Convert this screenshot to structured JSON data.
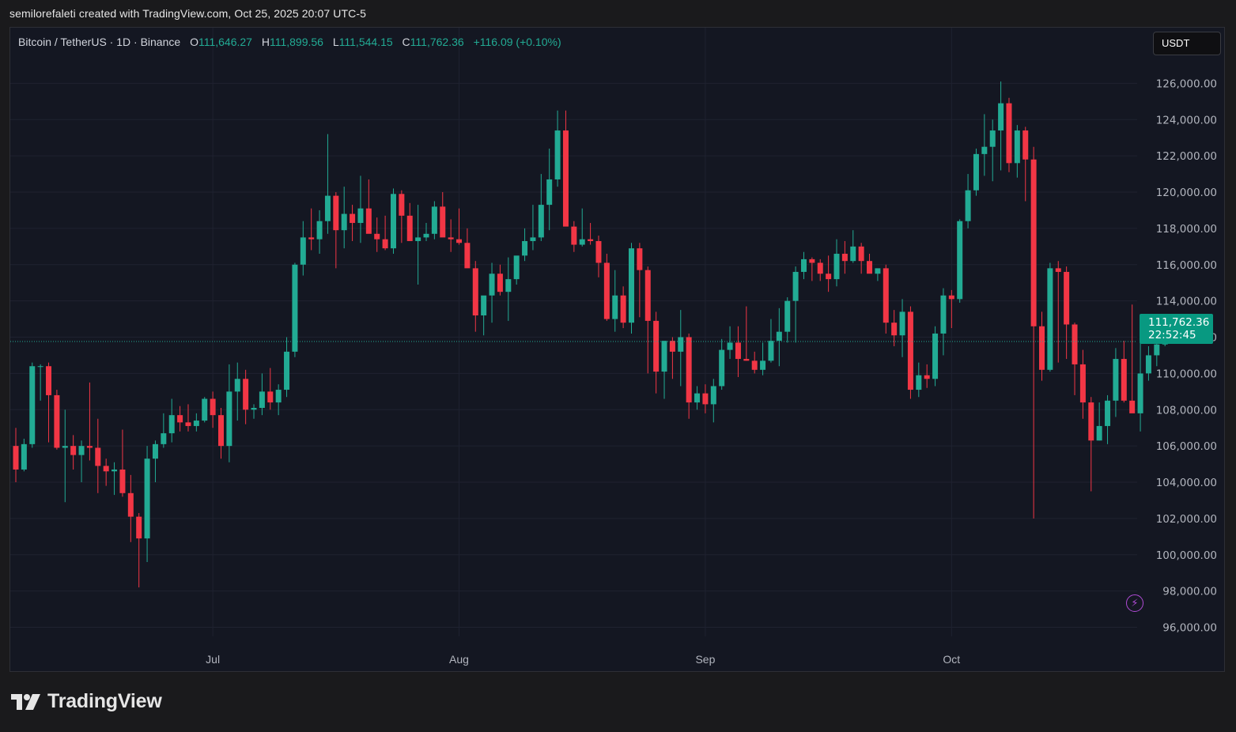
{
  "credit": "semilorefaleti created with TradingView.com, Oct 25, 2025 20:07 UTC-5",
  "legend": {
    "symbol": "Bitcoin / TetherUS · 1D · Binance",
    "open_label": "O",
    "open": "111,646.27",
    "high_label": "H",
    "high": "111,899.56",
    "low_label": "L",
    "low": "111,544.15",
    "close_label": "C",
    "close": "111,762.36",
    "change": "+116.09 (+0.10%)"
  },
  "currency_button": "USDT",
  "last_price": {
    "price": "111,762.36",
    "countdown": "22:52:45"
  },
  "brand": "TradingView",
  "colors": {
    "up": "#22ab94",
    "down": "#f23645",
    "background": "#141722",
    "grid": "#1f2230"
  },
  "chart_data": {
    "type": "candlestick",
    "symbol": "BTCUSDT",
    "interval": "1D",
    "x_ticks": [
      "Jul",
      "Aug",
      "Sep",
      "Oct"
    ],
    "y_ticks": [
      96000,
      98000,
      100000,
      102000,
      104000,
      106000,
      108000,
      110000,
      112000,
      114000,
      116000,
      118000,
      120000,
      122000,
      124000,
      126000
    ],
    "ylim": [
      95500,
      127500
    ],
    "grid": true,
    "last_price": 111762.36,
    "candles_ohlc": [
      [
        106000,
        107000,
        104000,
        104700
      ],
      [
        104700,
        106400,
        104600,
        106100
      ],
      [
        106100,
        110600,
        105900,
        110400
      ],
      [
        110400,
        110500,
        108500,
        110400
      ],
      [
        110400,
        110600,
        106200,
        108800
      ],
      [
        108800,
        109100,
        105800,
        105900
      ],
      [
        105900,
        108000,
        102900,
        106000
      ],
      [
        106000,
        106600,
        104700,
        105500
      ],
      [
        105500,
        106300,
        104000,
        106000
      ],
      [
        106000,
        109500,
        105200,
        105900
      ],
      [
        105900,
        107500,
        103400,
        104900
      ],
      [
        104900,
        105300,
        103800,
        104600
      ],
      [
        104600,
        105100,
        103300,
        104700
      ],
      [
        104700,
        106900,
        103200,
        103400
      ],
      [
        103400,
        104400,
        100700,
        102100
      ],
      [
        102100,
        102300,
        98200,
        100900
      ],
      [
        100900,
        106000,
        99600,
        105300
      ],
      [
        105300,
        106300,
        104000,
        106100
      ],
      [
        106100,
        107800,
        105900,
        106700
      ],
      [
        106700,
        108600,
        106200,
        107700
      ],
      [
        107700,
        108200,
        106800,
        107300
      ],
      [
        107300,
        108300,
        106800,
        107100
      ],
      [
        107100,
        107800,
        106800,
        107400
      ],
      [
        107400,
        108700,
        107300,
        108600
      ],
      [
        108600,
        109000,
        107000,
        107700
      ],
      [
        107700,
        108100,
        105300,
        106000
      ],
      [
        106000,
        110500,
        105100,
        109000
      ],
      [
        109000,
        110600,
        107400,
        109700
      ],
      [
        109700,
        110200,
        107200,
        108000
      ],
      [
        108000,
        108300,
        107500,
        108100
      ],
      [
        108100,
        110000,
        107700,
        109000
      ],
      [
        109000,
        110300,
        108000,
        108400
      ],
      [
        108400,
        109400,
        107700,
        109100
      ],
      [
        109100,
        112000,
        108700,
        111200
      ],
      [
        111200,
        116100,
        110900,
        116000
      ],
      [
        116000,
        118400,
        115400,
        117500
      ],
      [
        117500,
        119100,
        116800,
        117400
      ],
      [
        117400,
        119000,
        116600,
        118400
      ],
      [
        118400,
        123200,
        117700,
        119800
      ],
      [
        119800,
        120000,
        115800,
        117900
      ],
      [
        117900,
        120300,
        116900,
        118800
      ],
      [
        118800,
        119300,
        117300,
        118300
      ],
      [
        118300,
        120900,
        117200,
        119100
      ],
      [
        119100,
        120700,
        118300,
        117700
      ],
      [
        117700,
        118600,
        116700,
        117400
      ],
      [
        117400,
        118700,
        116800,
        116900
      ],
      [
        116900,
        120200,
        116600,
        119900
      ],
      [
        119900,
        120100,
        117200,
        118700
      ],
      [
        118700,
        119400,
        117500,
        117300
      ],
      [
        117300,
        119300,
        114900,
        117500
      ],
      [
        117500,
        118300,
        117300,
        117700
      ],
      [
        117700,
        119500,
        117400,
        119200
      ],
      [
        119200,
        120000,
        117800,
        117500
      ],
      [
        117500,
        118500,
        116700,
        117400
      ],
      [
        117400,
        119100,
        117100,
        117200
      ],
      [
        117200,
        118000,
        116100,
        115800
      ],
      [
        115800,
        116200,
        112300,
        113200
      ],
      [
        113200,
        114000,
        112100,
        114300
      ],
      [
        114300,
        116100,
        112800,
        115500
      ],
      [
        115500,
        116000,
        114300,
        114500
      ],
      [
        114500,
        116400,
        112900,
        115200
      ],
      [
        115200,
        116300,
        114900,
        116500
      ],
      [
        116500,
        118000,
        116200,
        117300
      ],
      [
        117300,
        119300,
        116800,
        117500
      ],
      [
        117500,
        121000,
        117300,
        119300
      ],
      [
        119300,
        122400,
        117900,
        120700
      ],
      [
        120700,
        124500,
        120300,
        123400
      ],
      [
        123400,
        124500,
        119000,
        118100
      ],
      [
        118100,
        118400,
        116700,
        117100
      ],
      [
        117100,
        119100,
        117000,
        117400
      ],
      [
        117400,
        118300,
        117100,
        117300
      ],
      [
        117300,
        117600,
        115300,
        116100
      ],
      [
        116100,
        116600,
        112900,
        113000
      ],
      [
        113000,
        115700,
        112300,
        114300
      ],
      [
        114300,
        114800,
        112500,
        112800
      ],
      [
        112800,
        117200,
        112200,
        116900
      ],
      [
        116900,
        117200,
        113100,
        115700
      ],
      [
        115700,
        115900,
        110000,
        112900
      ],
      [
        112900,
        113400,
        108900,
        110100
      ],
      [
        110100,
        110500,
        108600,
        111800
      ],
      [
        111800,
        112000,
        109700,
        111200
      ],
      [
        111200,
        113500,
        109300,
        112000
      ],
      [
        112000,
        112200,
        107500,
        108400
      ],
      [
        108400,
        109300,
        108000,
        108900
      ],
      [
        108900,
        109400,
        107800,
        108300
      ],
      [
        108300,
        109700,
        107300,
        109300
      ],
      [
        109300,
        111900,
        109100,
        111300
      ],
      [
        111300,
        112600,
        110800,
        111700
      ],
      [
        111700,
        112600,
        109800,
        110800
      ],
      [
        110800,
        113700,
        110700,
        110700
      ],
      [
        110700,
        111200,
        110000,
        110200
      ],
      [
        110200,
        111700,
        109900,
        110700
      ],
      [
        110700,
        113000,
        110600,
        111800
      ],
      [
        111800,
        113600,
        110400,
        112300
      ],
      [
        112300,
        114200,
        111700,
        114000
      ],
      [
        114000,
        115900,
        111700,
        115600
      ],
      [
        115600,
        116700,
        115200,
        116300
      ],
      [
        116300,
        116400,
        115100,
        116100
      ],
      [
        116100,
        116300,
        115100,
        115500
      ],
      [
        115500,
        116500,
        114500,
        115200
      ],
      [
        115200,
        117400,
        114800,
        116600
      ],
      [
        116600,
        117300,
        115500,
        116200
      ],
      [
        116200,
        117900,
        116100,
        117000
      ],
      [
        117000,
        117200,
        115500,
        116200
      ],
      [
        116200,
        116600,
        115800,
        115500
      ],
      [
        115500,
        115700,
        115100,
        115800
      ],
      [
        115800,
        116000,
        112200,
        112800
      ],
      [
        112800,
        113500,
        111500,
        112100
      ],
      [
        112100,
        114100,
        110900,
        113400
      ],
      [
        113400,
        113700,
        108600,
        109100
      ],
      [
        109100,
        110600,
        108700,
        109900
      ],
      [
        109900,
        110500,
        109200,
        109700
      ],
      [
        109700,
        112600,
        109300,
        112200
      ],
      [
        112200,
        114700,
        111000,
        114300
      ],
      [
        114300,
        114600,
        112500,
        114100
      ],
      [
        114100,
        118500,
        113900,
        118400
      ],
      [
        118400,
        121000,
        118000,
        120100
      ],
      [
        120100,
        122400,
        119800,
        122100
      ],
      [
        122100,
        124300,
        120900,
        122500
      ],
      [
        122500,
        124000,
        120600,
        123400
      ],
      [
        123400,
        126100,
        121200,
        124900
      ],
      [
        124900,
        125200,
        121100,
        121600
      ],
      [
        121600,
        123700,
        120800,
        123400
      ],
      [
        123400,
        123600,
        119500,
        121800
      ],
      [
        121800,
        122500,
        102000,
        112600
      ],
      [
        112600,
        113400,
        109600,
        110200
      ],
      [
        110200,
        116100,
        110100,
        115800
      ],
      [
        115800,
        116200,
        110600,
        115600
      ],
      [
        115600,
        115900,
        110800,
        112700
      ],
      [
        112700,
        112800,
        108800,
        110500
      ],
      [
        110500,
        111300,
        107500,
        108400
      ],
      [
        108400,
        108700,
        103500,
        106300
      ],
      [
        106300,
        108400,
        106300,
        107100
      ],
      [
        107100,
        108800,
        106100,
        108500
      ],
      [
        108500,
        111400,
        107600,
        110800
      ],
      [
        110800,
        111800,
        108400,
        108500
      ],
      [
        108500,
        113800,
        108000,
        107800
      ],
      [
        107800,
        111900,
        106800,
        110000
      ],
      [
        110000,
        111500,
        109600,
        111000
      ],
      [
        111000,
        112400,
        110400,
        111600
      ],
      [
        111600,
        111900,
        111500,
        111800
      ]
    ]
  }
}
